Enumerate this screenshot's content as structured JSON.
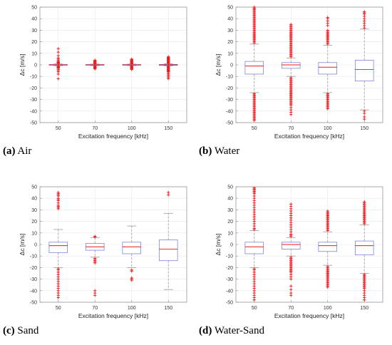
{
  "colors": {
    "outlier": "#e8191c",
    "median": "#e8191c",
    "box": "#7e86d6",
    "whisker": "#9a9a9a",
    "grid": "#e8e8e8",
    "axis": "#888888"
  },
  "panels": [
    {
      "caption_letter": "(a)",
      "caption_text": " Air",
      "chart_data": {
        "type": "box",
        "categories": [
          "50",
          "70",
          "100",
          "150"
        ],
        "xlabel": "Excitation frequency [kHz]",
        "ylabel": "Δc [m/s]",
        "ylim": [
          -50,
          50
        ],
        "yticks": [
          -50,
          -40,
          -30,
          -20,
          -10,
          0,
          10,
          20,
          30,
          40,
          50
        ],
        "grid": true,
        "boxes": [
          {
            "category": "50",
            "q1": -0.3,
            "median": 0,
            "q3": 0.3,
            "whisker_low": -0.8,
            "whisker_high": 0.8,
            "outliers": [
              14,
              11,
              8,
              6,
              5,
              4,
              3,
              2.5,
              2,
              1.5,
              1.2,
              -1.2,
              -1.5,
              -2,
              -2.5,
              -3,
              -4,
              -5,
              -6,
              -8,
              -12
            ]
          },
          {
            "category": "70",
            "q1": -0.3,
            "median": 0,
            "q3": 0.3,
            "whisker_low": -0.7,
            "whisker_high": 0.7,
            "outliers": [
              4,
              3.5,
              3,
              2.5,
              2,
              1.5,
              1,
              -1,
              -1.5,
              -2,
              -2.5,
              -3,
              -3.5
            ]
          },
          {
            "category": "100",
            "q1": -0.3,
            "median": 0,
            "q3": 0.3,
            "whisker_low": -0.7,
            "whisker_high": 0.7,
            "outliers": [
              5,
              4.5,
              4,
              3.5,
              3,
              2.5,
              2,
              1.5,
              1,
              -1,
              -1.5,
              -2,
              -2.5,
              -3,
              -3.5,
              -4
            ]
          },
          {
            "category": "150",
            "q1": -0.4,
            "median": 0,
            "q3": 0.4,
            "whisker_low": -0.9,
            "whisker_high": 0.9,
            "outliers": [
              7,
              6.5,
              6,
              5.5,
              5,
              4.5,
              4,
              3.5,
              3,
              2.5,
              2,
              1.5,
              1.2,
              -1.2,
              -1.5,
              -2,
              -2.5,
              -3,
              -3.5,
              -4,
              -4.5,
              -5,
              -5.5,
              -6,
              -7,
              -8,
              -9,
              -10,
              -11,
              -12
            ]
          }
        ]
      }
    },
    {
      "caption_letter": "(b)",
      "caption_text": " Water",
      "chart_data": {
        "type": "box",
        "categories": [
          "50",
          "70",
          "100",
          "150"
        ],
        "xlabel": "Excitation frequency [kHz]",
        "ylabel": "Δc [m/s]",
        "ylim": [
          -50,
          50
        ],
        "yticks": [
          -50,
          -40,
          -30,
          -20,
          -10,
          0,
          10,
          20,
          30,
          40,
          50
        ],
        "grid": true,
        "boxes": [
          {
            "category": "50",
            "q1": -8,
            "median": -1,
            "q3": 3,
            "whisker_low": -24,
            "whisker_high": 18,
            "outliers": [
              50,
              49,
              48,
              47,
              46,
              45,
              44,
              43,
              42,
              41,
              40,
              39,
              38,
              37,
              36,
              35,
              34,
              33,
              32,
              31,
              30,
              29,
              28,
              27,
              26,
              25,
              24,
              23,
              22,
              21,
              20,
              19,
              -25,
              -26,
              -27,
              -28,
              -29,
              -30,
              -31,
              -32,
              -33,
              -34,
              -35,
              -36,
              -37,
              -38,
              -39,
              -40,
              -41,
              -42,
              -43,
              -44,
              -45,
              -46,
              -47,
              -48
            ]
          },
          {
            "category": "70",
            "q1": -3,
            "median": 0,
            "q3": 2,
            "whisker_low": -10,
            "whisker_high": 6,
            "outliers": [
              35,
              34,
              33,
              32,
              31,
              30,
              29,
              28,
              27,
              26,
              25,
              24,
              23,
              22,
              21,
              20,
              19,
              18,
              17,
              16,
              15,
              14,
              13,
              12,
              11,
              10,
              9,
              8,
              7,
              -11,
              -12,
              -13,
              -14,
              -15,
              -16,
              -17,
              -18,
              -19,
              -20,
              -21,
              -22,
              -23,
              -24,
              -25,
              -26,
              -27,
              -28,
              -29,
              -30,
              -31,
              -32,
              -33,
              -34,
              -35,
              -37,
              -39,
              -41,
              -43
            ]
          },
          {
            "category": "100",
            "q1": -8,
            "median": -2,
            "q3": 2,
            "whisker_low": -24,
            "whisker_high": 17,
            "outliers": [
              41,
              40,
              38,
              36,
              34,
              30,
              29,
              28,
              27,
              26,
              25,
              24,
              23,
              22,
              21,
              20,
              19,
              18,
              -25,
              -26,
              -27,
              -28,
              -29,
              -30,
              -31,
              -32,
              -33,
              -34,
              -35,
              -36,
              -37,
              -38
            ]
          },
          {
            "category": "150",
            "q1": -14,
            "median": -4,
            "q3": 4,
            "whisker_low": -39,
            "whisker_high": 31,
            "outliers": [
              46,
              45,
              44,
              42,
              40,
              38,
              36,
              34,
              32,
              -40,
              -42,
              -45,
              -47
            ]
          }
        ]
      }
    },
    {
      "caption_letter": "(c)",
      "caption_text": " Sand",
      "chart_data": {
        "type": "box",
        "categories": [
          "50",
          "70",
          "100",
          "150"
        ],
        "xlabel": "Excitation frequency [kHz]",
        "ylabel": "Δc [m/s]",
        "ylim": [
          -50,
          50
        ],
        "yticks": [
          -50,
          -40,
          -30,
          -20,
          -10,
          0,
          10,
          20,
          30,
          40,
          50
        ],
        "grid": true,
        "boxes": [
          {
            "category": "50",
            "q1": -7,
            "median": -1,
            "q3": 2,
            "whisker_low": -20,
            "whisker_high": 13,
            "outliers": [
              45,
              44,
              43,
              42,
              40,
              39,
              38,
              36,
              34,
              33,
              32,
              31,
              -21,
              -22,
              -24,
              -26,
              -28,
              -30,
              -32,
              -34,
              -36,
              -38,
              -40,
              -42,
              -44,
              -46
            ]
          },
          {
            "category": "70",
            "q1": -5,
            "median": -2,
            "q3": 1,
            "whisker_low": -11,
            "whisker_high": 6,
            "outliers": [
              7,
              6.5,
              -12,
              -13,
              -14,
              -15,
              -16,
              -40,
              -42,
              -44
            ]
          },
          {
            "category": "100",
            "q1": -8,
            "median": -2,
            "q3": 2,
            "whisker_low": -20,
            "whisker_high": 16,
            "outliers": [
              -22,
              -23,
              -29,
              -30,
              -31
            ]
          },
          {
            "category": "150",
            "q1": -14,
            "median": -4,
            "q3": 4,
            "whisker_low": -39,
            "whisker_high": 27,
            "outliers": [
              45,
              43
            ]
          }
        ]
      }
    },
    {
      "caption_letter": "(d)",
      "caption_text": " Water-Sand",
      "chart_data": {
        "type": "box",
        "categories": [
          "50",
          "70",
          "100",
          "150"
        ],
        "xlabel": "Excitation frequency [kHz]",
        "ylabel": "Δc [m/s]",
        "ylim": [
          -50,
          50
        ],
        "yticks": [
          -50,
          -40,
          -30,
          -20,
          -10,
          0,
          10,
          20,
          30,
          40,
          50
        ],
        "grid": true,
        "boxes": [
          {
            "category": "50",
            "q1": -8,
            "median": -2,
            "q3": 2,
            "whisker_low": -20,
            "whisker_high": 12,
            "outliers": [
              49,
              48,
              47,
              46,
              45,
              44,
              42,
              40,
              38,
              36,
              34,
              32,
              30,
              28,
              26,
              24,
              22,
              20,
              18,
              16,
              14,
              13,
              -21,
              -22,
              -24,
              -26,
              -28,
              -30,
              -32,
              -34,
              -36,
              -38,
              -40,
              -42,
              -44,
              -46,
              -48
            ]
          },
          {
            "category": "70",
            "q1": -4,
            "median": 0,
            "q3": 2,
            "whisker_low": -10,
            "whisker_high": 6,
            "outliers": [
              35,
              33,
              31,
              29,
              27,
              25,
              23,
              21,
              19,
              17,
              15,
              13,
              11,
              9,
              8,
              7,
              -11,
              -12,
              -13,
              -14,
              -15,
              -16,
              -17,
              -18,
              -19,
              -20,
              -21,
              -22,
              -23,
              -24,
              -26,
              -28,
              -30,
              -36,
              -39,
              -42,
              -44
            ]
          },
          {
            "category": "100",
            "q1": -6,
            "median": -1,
            "q3": 2,
            "whisker_low": -18,
            "whisker_high": 11,
            "outliers": [
              29,
              28,
              27,
              26,
              25,
              24,
              23,
              22,
              21,
              20,
              19,
              18,
              17,
              16,
              15,
              14,
              13,
              12,
              -19,
              -20,
              -21,
              -22,
              -23,
              -24,
              -25,
              -26,
              -27,
              -28,
              -29,
              -30,
              -31,
              -32,
              -33,
              -34,
              -35,
              -36,
              -37
            ]
          },
          {
            "category": "150",
            "q1": -9,
            "median": -1,
            "q3": 3,
            "whisker_low": -25,
            "whisker_high": 17,
            "outliers": [
              37,
              36,
              35,
              34,
              33,
              32,
              31,
              30,
              29,
              28,
              27,
              26,
              25,
              24,
              23,
              22,
              21,
              20,
              19,
              18,
              -26,
              -27,
              -28,
              -29,
              -30,
              -31,
              -32,
              -33,
              -34,
              -35,
              -36,
              -37,
              -38,
              -40,
              -42,
              -44,
              -46,
              -48
            ]
          }
        ]
      }
    }
  ]
}
